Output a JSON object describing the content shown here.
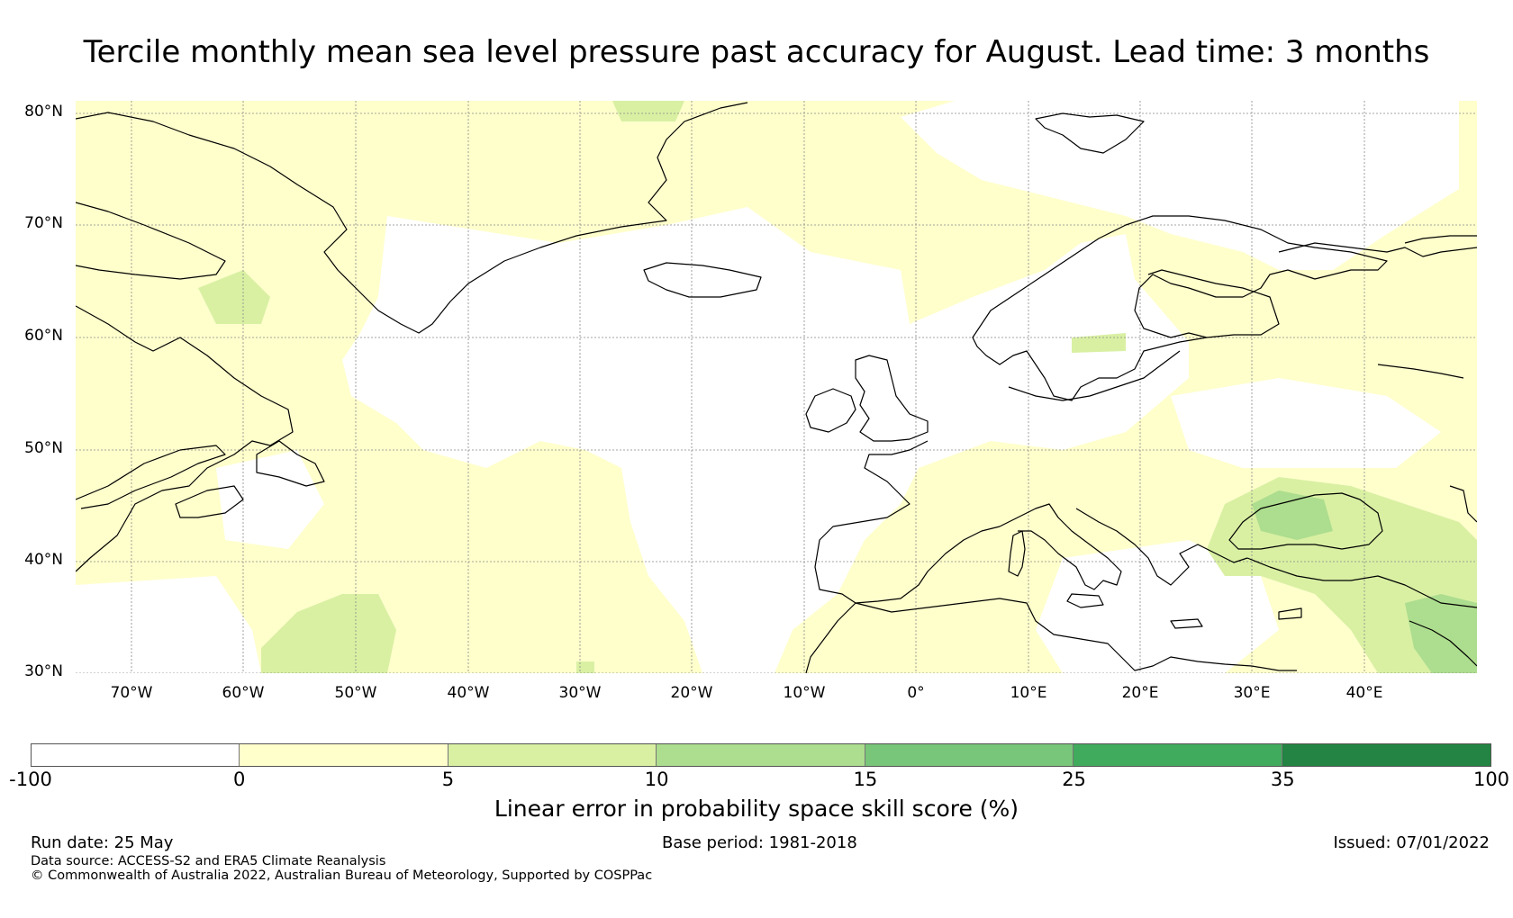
{
  "title": "Tercile monthly mean sea level pressure past accuracy for August. Lead time: 3 months",
  "map": {
    "lon_range": [
      -75,
      50
    ],
    "lat_range": [
      30,
      81
    ],
    "lat_ticks": [
      "30°N",
      "40°N",
      "50°N",
      "60°N",
      "70°N",
      "80°N"
    ],
    "lon_ticks": [
      "70°W",
      "60°W",
      "50°W",
      "40°W",
      "30°W",
      "20°W",
      "10°W",
      "0°",
      "10°E",
      "20°E",
      "30°E",
      "40°E"
    ],
    "gridlines": true
  },
  "colorbar": {
    "ticks": [
      "-100",
      "0",
      "5",
      "10",
      "15",
      "25",
      "35",
      "100"
    ],
    "colors": [
      "#ffffff",
      "#ffffcc",
      "#d9f0a3",
      "#addd8e",
      "#78c679",
      "#41ab5d",
      "#238443"
    ],
    "label": "Linear error in probability space skill score (%)"
  },
  "footer": {
    "run_date": "Run date: 25 May",
    "base_period": "Base period: 1981-2018",
    "issued": "Issued: 07/01/2022",
    "data_source": "Data source: ACCESS-S2 and ERA5 Climate Reanalysis",
    "copyright": "© Commonwealth of Australia 2022, Australian Bureau of Meteorology, Supported by COSPPac"
  }
}
